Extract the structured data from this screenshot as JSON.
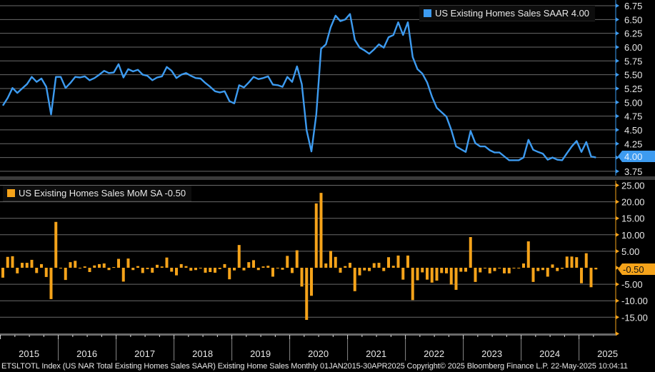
{
  "colors": {
    "saar": "#3d9bf0",
    "mom": "#f5a31a",
    "grid": "#6a6a6a",
    "background": "#000000"
  },
  "chart_data": [
    {
      "type": "line",
      "legend": "US Existing Homes Sales SAAR 4.00",
      "last_value_label": "4.00",
      "x_range": [
        "2015-01",
        "2025-04"
      ],
      "ylim": [
        3.75,
        6.75
      ],
      "yticks": [
        "6.75",
        "6.50",
        "6.25",
        "6.00",
        "5.75",
        "5.50",
        "5.25",
        "5.00",
        "4.75",
        "4.50",
        "4.25",
        "4.00",
        "3.75"
      ],
      "grid": true,
      "legend_position": "top-right",
      "series": [
        {
          "name": "US Existing Homes Sales SAAR",
          "values": [
            4.94,
            5.08,
            5.26,
            5.17,
            5.25,
            5.33,
            5.46,
            5.37,
            5.43,
            5.28,
            4.78,
            5.46,
            5.46,
            5.26,
            5.35,
            5.46,
            5.45,
            5.47,
            5.4,
            5.44,
            5.5,
            5.57,
            5.53,
            5.54,
            5.69,
            5.45,
            5.6,
            5.56,
            5.59,
            5.5,
            5.48,
            5.4,
            5.45,
            5.47,
            5.64,
            5.57,
            5.44,
            5.5,
            5.53,
            5.48,
            5.44,
            5.43,
            5.35,
            5.28,
            5.2,
            5.18,
            5.2,
            5.02,
            4.98,
            5.31,
            5.27,
            5.36,
            5.46,
            5.42,
            5.44,
            5.47,
            5.32,
            5.31,
            5.28,
            5.46,
            5.37,
            5.65,
            5.33,
            4.49,
            4.11,
            4.78,
            5.97,
            6.05,
            6.36,
            6.57,
            6.47,
            6.5,
            6.6,
            6.13,
            5.99,
            5.94,
            5.88,
            5.96,
            6.05,
            5.99,
            6.18,
            6.22,
            6.45,
            6.22,
            6.45,
            5.82,
            5.6,
            5.52,
            5.36,
            5.1,
            4.9,
            4.82,
            4.74,
            4.5,
            4.2,
            4.15,
            4.1,
            4.48,
            4.26,
            4.2,
            4.2,
            4.13,
            4.09,
            4.09,
            4.02,
            3.95,
            3.95,
            3.95,
            4.0,
            4.32,
            4.14,
            4.1,
            4.07,
            3.96,
            4.0,
            3.96,
            3.95,
            4.08,
            4.2,
            4.3,
            4.1,
            4.28,
            4.02,
            4.0
          ]
        }
      ]
    },
    {
      "type": "bar",
      "legend": "US Existing Homes Sales MoM SA -0.50",
      "last_value_label": "-0.50",
      "x_range": [
        "2015-01",
        "2025-04"
      ],
      "ylim": [
        -20,
        25
      ],
      "yticks": [
        "25.00",
        "20.00",
        "15.00",
        "10.00",
        "5.00",
        "-5.00",
        "-10.00",
        "-15.00"
      ],
      "grid": true,
      "legend_position": "top-left",
      "series": [
        {
          "name": "US Existing Homes Sales MoM SA",
          "values": [
            -3.0,
            3.3,
            3.5,
            -1.7,
            1.5,
            1.5,
            2.4,
            -1.6,
            1.1,
            -2.8,
            -9.5,
            13.9,
            0.0,
            -3.7,
            1.7,
            2.1,
            -0.2,
            0.4,
            -1.3,
            0.7,
            1.1,
            1.3,
            -0.7,
            0.2,
            2.7,
            -4.2,
            2.8,
            -0.7,
            0.5,
            -1.6,
            -0.4,
            -1.5,
            0.9,
            0.4,
            3.1,
            -1.2,
            -2.3,
            1.1,
            0.5,
            -0.9,
            -0.7,
            -0.2,
            -1.5,
            -1.3,
            -1.5,
            -0.4,
            1.1,
            -3.5,
            -0.8,
            6.9,
            -0.8,
            1.7,
            2.3,
            -0.7,
            0.4,
            0.6,
            -2.7,
            -0.2,
            -0.6,
            3.6,
            -1.6,
            5.3,
            -5.7,
            -15.8,
            -8.5,
            19.5,
            22.7,
            1.3,
            5.1,
            3.3,
            -1.5,
            0.5,
            1.5,
            -7.1,
            -2.3,
            -0.8,
            -1.0,
            1.4,
            1.5,
            -1.0,
            3.2,
            0.6,
            3.7,
            -3.6,
            3.7,
            -9.8,
            -3.8,
            -1.4,
            -3.6,
            -4.5,
            -3.9,
            -1.6,
            -1.7,
            -5.1,
            -6.7,
            -1.2,
            -1.2,
            9.3,
            -4.3,
            -1.4,
            0.0,
            -1.7,
            -1.0,
            0.0,
            -1.7,
            -1.7,
            0.0,
            0.0,
            1.3,
            8.0,
            -4.3,
            -1.0,
            -0.7,
            -2.7,
            1.0,
            -1.0,
            -0.3,
            3.4,
            3.4,
            3.2,
            -4.7,
            4.4,
            -5.9,
            -0.5
          ]
        }
      ]
    }
  ],
  "x_axis": {
    "years": [
      "2015",
      "2016",
      "2017",
      "2018",
      "2019",
      "2020",
      "2021",
      "2022",
      "2023",
      "2024",
      "2025"
    ]
  },
  "footer": "ETSLTOTL Index (US NAR Total Existing Homes Sales SAAR) Existing Home Sales  Monthly 01JAN2015-30APR2025 Copyright© 2025 Bloomberg Finance L.P. 22-May-2025 10:04:11"
}
